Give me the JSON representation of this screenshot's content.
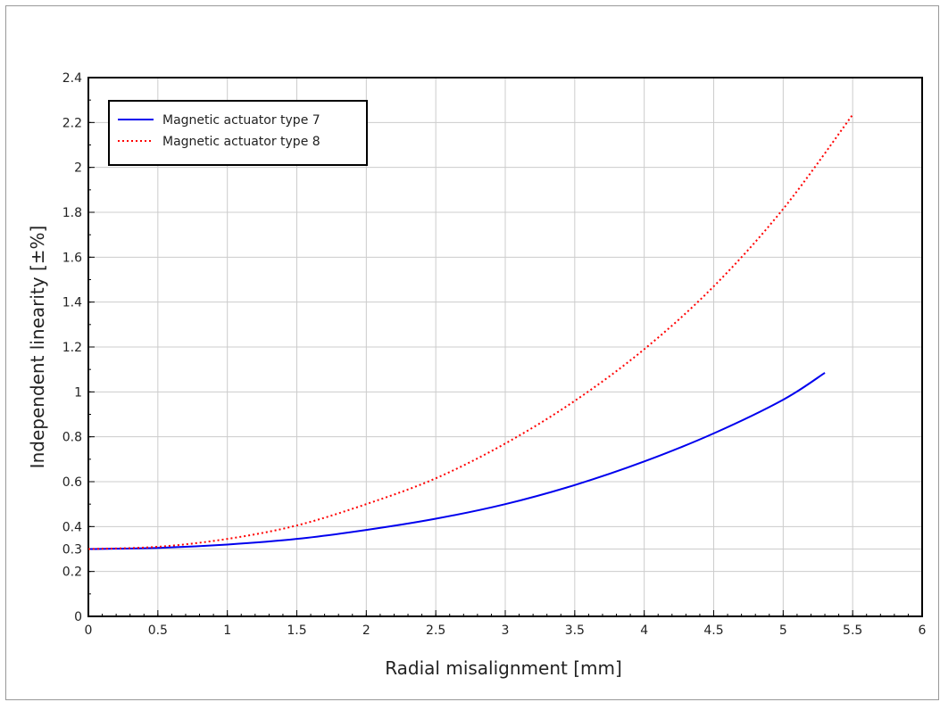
{
  "chart_data": {
    "type": "line",
    "title": "",
    "xlabel": "Radial misalignment [mm]",
    "ylabel": "Independent linearity [±%]",
    "xlim": [
      0,
      6
    ],
    "ylim": [
      0,
      2.4
    ],
    "x_ticks": [
      "0",
      "0.5",
      "1",
      "1.5",
      "2",
      "2.5",
      "3",
      "3.5",
      "4",
      "4.5",
      "5",
      "5.5",
      "6"
    ],
    "y_ticks": [
      "0",
      "0.2",
      "0.3",
      "0.4",
      "0.6",
      "0.8",
      "1",
      "1.2",
      "1.4",
      "1.6",
      "1.8",
      "2",
      "2.2",
      "2.4"
    ],
    "grid": true,
    "legend_position": "top-left",
    "series": [
      {
        "name": "Magnetic actuator type 7",
        "color": "#0000ee",
        "style": "solid",
        "x": [
          0,
          0.5,
          1,
          1.5,
          2,
          2.5,
          3,
          3.5,
          4,
          4.5,
          5,
          5.3
        ],
        "y": [
          0.3,
          0.305,
          0.32,
          0.345,
          0.385,
          0.435,
          0.5,
          0.585,
          0.69,
          0.815,
          0.965,
          1.085
        ]
      },
      {
        "name": "Magnetic actuator type 8",
        "color": "#ff0000",
        "style": "dotted",
        "x": [
          0,
          0.5,
          1,
          1.5,
          2,
          2.5,
          3,
          3.5,
          4,
          4.5,
          5,
          5.5
        ],
        "y": [
          0.3,
          0.31,
          0.345,
          0.405,
          0.5,
          0.615,
          0.77,
          0.96,
          1.19,
          1.47,
          1.815,
          2.235
        ]
      }
    ]
  }
}
